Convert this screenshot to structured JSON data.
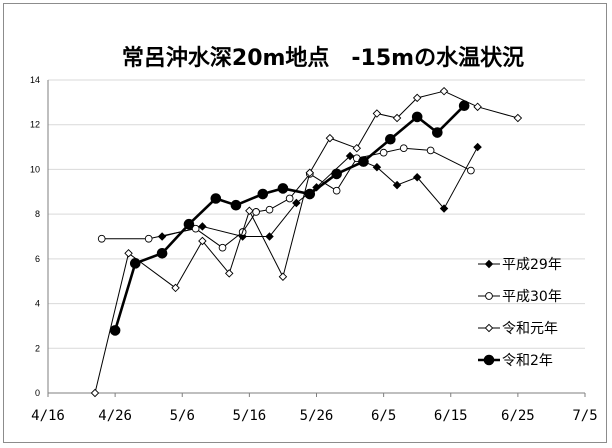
{
  "chart_data": {
    "type": "line",
    "title": "常呂沖水深20m地点　-15mの水温状況",
    "xlabel": "",
    "ylabel": "",
    "x_axis": {
      "range": [
        "2000-04-16",
        "2000-07-05"
      ],
      "tick_labels": [
        "4/16",
        "4/26",
        "5/6",
        "5/16",
        "5/26",
        "6/5",
        "6/15",
        "6/25",
        "7/5"
      ]
    },
    "y_axis": {
      "range": [
        0,
        14
      ],
      "tick_labels": [
        "0",
        "2",
        "4",
        "6",
        "8",
        "10",
        "12",
        "14"
      ]
    },
    "grid": "horizontal",
    "legend": "right",
    "series": [
      {
        "name": "平成29年",
        "marker": "diamond-filled",
        "line_width": 1,
        "points": [
          [
            "5/3",
            7.0
          ],
          [
            "5/9",
            7.45
          ],
          [
            "5/15",
            7.0
          ],
          [
            "5/19",
            7.0
          ],
          [
            "5/23",
            8.5
          ],
          [
            "5/26",
            9.2
          ],
          [
            "5/31",
            10.6
          ],
          [
            "6/4",
            10.1
          ],
          [
            "6/7",
            9.3
          ],
          [
            "6/10",
            9.65
          ],
          [
            "6/14",
            8.25
          ],
          [
            "6/19",
            11.0
          ]
        ]
      },
      {
        "name": "平成30年",
        "marker": "circle-open",
        "line_width": 1,
        "points": [
          [
            "4/24",
            6.9
          ],
          [
            "5/1",
            6.9
          ],
          [
            "5/8",
            7.35
          ],
          [
            "5/12",
            6.5
          ],
          [
            "5/15",
            7.2
          ],
          [
            "5/17",
            8.1
          ],
          [
            "5/19",
            8.2
          ],
          [
            "5/22",
            8.7
          ],
          [
            "5/25",
            9.8
          ],
          [
            "5/29",
            9.05
          ],
          [
            "6/1",
            10.5
          ],
          [
            "6/5",
            10.75
          ],
          [
            "6/8",
            10.95
          ],
          [
            "6/12",
            10.85
          ],
          [
            "6/18",
            9.95
          ]
        ]
      },
      {
        "name": "令和元年",
        "marker": "diamond-open",
        "line_width": 1,
        "points": [
          [
            "4/23",
            0.0
          ],
          [
            "4/28",
            6.25
          ],
          [
            "5/5",
            4.7
          ],
          [
            "5/9",
            6.8
          ],
          [
            "5/13",
            5.35
          ],
          [
            "5/16",
            8.15
          ],
          [
            "5/21",
            5.2
          ],
          [
            "5/25",
            9.85
          ],
          [
            "5/28",
            11.4
          ],
          [
            "6/1",
            10.95
          ],
          [
            "6/4",
            12.5
          ],
          [
            "6/7",
            12.3
          ],
          [
            "6/10",
            13.2
          ],
          [
            "6/14",
            13.5
          ],
          [
            "6/19",
            12.8
          ],
          [
            "6/25",
            12.3
          ]
        ]
      },
      {
        "name": "令和2年",
        "marker": "circle-filled",
        "line_width": 2.6,
        "points": [
          [
            "4/26",
            2.8
          ],
          [
            "4/29",
            5.8
          ],
          [
            "5/3",
            6.25
          ],
          [
            "5/7",
            7.55
          ],
          [
            "5/11",
            8.7
          ],
          [
            "5/14",
            8.4
          ],
          [
            "5/18",
            8.9
          ],
          [
            "5/21",
            9.15
          ],
          [
            "5/25",
            8.9
          ],
          [
            "5/29",
            9.8
          ],
          [
            "6/2",
            10.35
          ],
          [
            "6/6",
            11.35
          ],
          [
            "6/10",
            12.35
          ],
          [
            "6/13",
            11.65
          ],
          [
            "6/17",
            12.85
          ]
        ]
      }
    ]
  }
}
